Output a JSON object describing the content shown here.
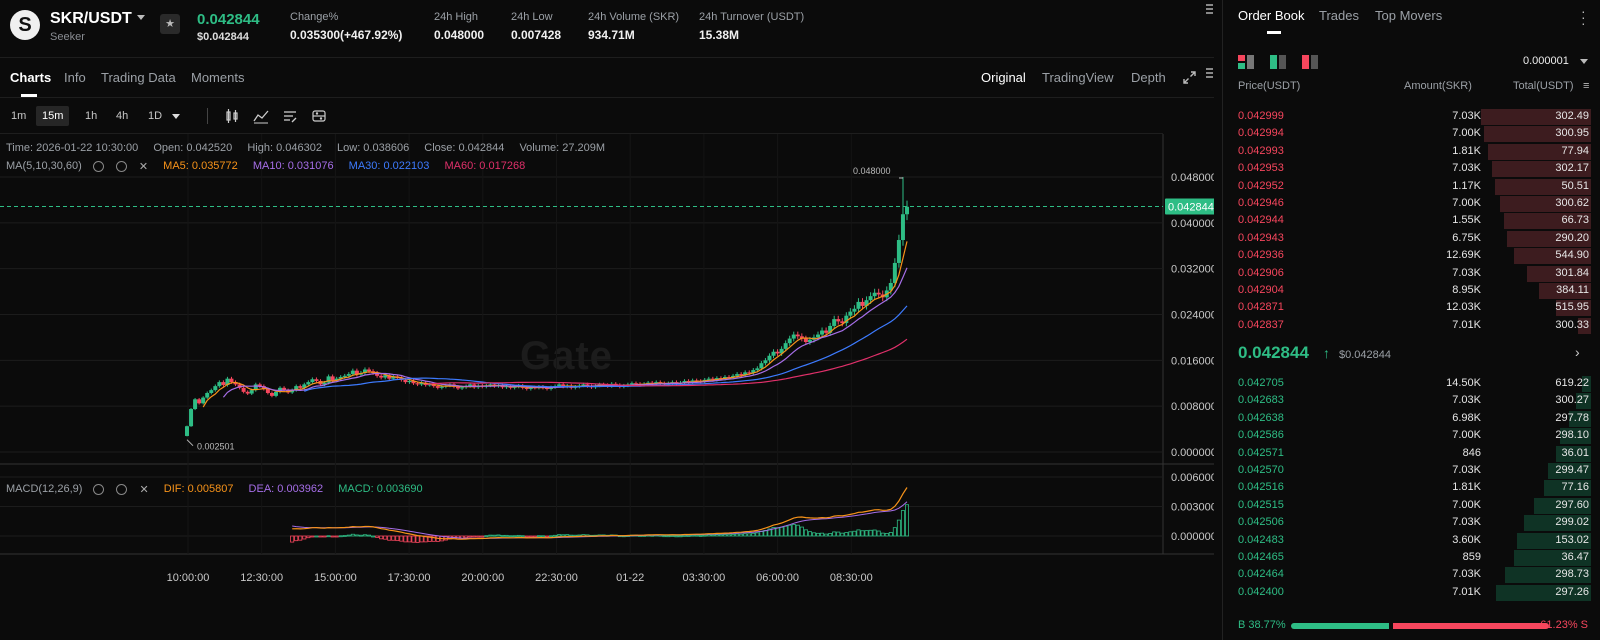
{
  "header": {
    "pair": "SKR/USDT",
    "subtitle": "Seeker",
    "price": "0.042844",
    "price_usd": "$0.042844",
    "stats": [
      {
        "label": "Change%",
        "value": "0.035300(+467.92%)",
        "color": "#2ebd85"
      },
      {
        "label": "24h High",
        "value": "0.048000"
      },
      {
        "label": "24h Low",
        "value": "0.007428"
      },
      {
        "label": "24h Volume (SKR)",
        "value": "934.71M"
      },
      {
        "label": "24h Turnover (USDT)",
        "value": "15.38M"
      }
    ]
  },
  "chart_tabs": {
    "left": [
      "Charts",
      "Info",
      "Trading Data",
      "Moments"
    ],
    "right": [
      "Original",
      "TradingView",
      "Depth"
    ],
    "active_left": "Charts",
    "active_right": "Original"
  },
  "toolbar": {
    "intervals": [
      "1m",
      "15m",
      "1h",
      "4h",
      "1D"
    ],
    "active_interval": "15m",
    "icons": [
      "candle-type-icon",
      "indicator-icon",
      "draw-icon",
      "settings-icon"
    ]
  },
  "ohlc": {
    "time": "Time: 2026-01-22 10:30:00",
    "open": "Open: 0.042520",
    "high": "High: 0.046302",
    "low": "Low: 0.038606",
    "close": "Close: 0.042844",
    "volume": "Volume: 27.209M"
  },
  "ma_legend": {
    "title": "MA(5,10,30,60)",
    "items": [
      {
        "label": "MA5: 0.035772",
        "color": "#f7931a"
      },
      {
        "label": "MA10: 0.031076",
        "color": "#a66ee8"
      },
      {
        "label": "MA30: 0.022103",
        "color": "#3d7bff"
      },
      {
        "label": "MA60: 0.017268",
        "color": "#e0306a"
      }
    ]
  },
  "macd_legend": {
    "title": "MACD(12,26,9)",
    "items": [
      {
        "label": "DIF: 0.005807",
        "color": "#f7931a"
      },
      {
        "label": "DEA: 0.003962",
        "color": "#a66ee8"
      },
      {
        "label": "MACD: 0.003690",
        "color": "#2ebd85"
      }
    ]
  },
  "watermark": "Gate",
  "chart_data": {
    "type": "candlestick",
    "price_axis": [
      "0.048000",
      "0.040000",
      "0.032000",
      "0.024000",
      "0.016000",
      "0.008000",
      "0.000000"
    ],
    "price_axis_values": [
      0.048,
      0.04,
      0.032,
      0.024,
      0.016,
      0.008,
      0.0
    ],
    "macd_axis": [
      "0.006000",
      "0.003000",
      "0.000000"
    ],
    "macd_axis_values": [
      0.006,
      0.003,
      0.0
    ],
    "time_axis": [
      "10:00:00",
      "12:30:00",
      "15:00:00",
      "17:30:00",
      "20:00:00",
      "22:30:00",
      "01-22",
      "03:30:00",
      "06:00:00",
      "08:30:00"
    ],
    "current_price_label": "0.042844",
    "current_price": 0.042844,
    "max_label": "0.048000",
    "max_value": 0.048,
    "min_label": "0.002501",
    "min_value": 0.002501,
    "closes": [
      0.0045,
      0.0075,
      0.0092,
      0.0085,
      0.0095,
      0.0103,
      0.0108,
      0.0115,
      0.0122,
      0.0117,
      0.0128,
      0.0122,
      0.0118,
      0.0112,
      0.0105,
      0.0102,
      0.0108,
      0.0118,
      0.0115,
      0.011,
      0.0103,
      0.0098,
      0.0105,
      0.0112,
      0.0108,
      0.0104,
      0.0108,
      0.0115,
      0.0112,
      0.0118,
      0.0122,
      0.0127,
      0.0124,
      0.0118,
      0.0121,
      0.0132,
      0.0125,
      0.0128,
      0.0131,
      0.0133,
      0.0136,
      0.0142,
      0.0135,
      0.0138,
      0.0144,
      0.0141,
      0.0138,
      0.0133,
      0.013,
      0.0134,
      0.0128,
      0.0132,
      0.0129,
      0.0126,
      0.0122,
      0.0124,
      0.012,
      0.0118,
      0.0121,
      0.0117,
      0.0118,
      0.0115,
      0.0112,
      0.0114,
      0.0116,
      0.0118,
      0.0114,
      0.0111,
      0.0113,
      0.0115,
      0.0118,
      0.0113,
      0.0116,
      0.0114,
      0.0116,
      0.0118,
      0.0115,
      0.0117,
      0.0113,
      0.0115,
      0.0112,
      0.0114,
      0.0116,
      0.0112,
      0.011,
      0.0113,
      0.0112,
      0.0114,
      0.0112,
      0.011,
      0.0113,
      0.0115,
      0.0118,
      0.0114,
      0.0116,
      0.0112,
      0.0114,
      0.0116,
      0.0118,
      0.0115,
      0.0113,
      0.0116,
      0.0118,
      0.0117,
      0.0115,
      0.0119,
      0.0117,
      0.0114,
      0.0116,
      0.0118,
      0.012,
      0.0119,
      0.0117,
      0.0119,
      0.0121,
      0.0119,
      0.0122,
      0.012,
      0.0118,
      0.012,
      0.0122,
      0.0119,
      0.0121,
      0.0124,
      0.0122,
      0.0125,
      0.0124,
      0.0123,
      0.0126,
      0.0128,
      0.0126,
      0.0129,
      0.0128,
      0.0131,
      0.013,
      0.0133,
      0.0136,
      0.0134,
      0.0139,
      0.0138,
      0.0143,
      0.0146,
      0.0155,
      0.016,
      0.0168,
      0.0175,
      0.0172,
      0.018,
      0.019,
      0.0198,
      0.0205,
      0.0202,
      0.0198,
      0.0192,
      0.0196,
      0.02,
      0.0205,
      0.0212,
      0.0208,
      0.022,
      0.0232,
      0.0228,
      0.0225,
      0.0238,
      0.0245,
      0.025,
      0.0262,
      0.0255,
      0.0265,
      0.0272,
      0.0278,
      0.0275,
      0.027,
      0.0282,
      0.0295,
      0.033,
      0.037,
      0.0415,
      0.0428
    ],
    "series": [
      {
        "name": "MA5"
      },
      {
        "name": "MA10"
      },
      {
        "name": "MA30"
      },
      {
        "name": "MA60"
      },
      {
        "name": "DIF"
      },
      {
        "name": "DEA"
      },
      {
        "name": "MACD"
      }
    ]
  },
  "orderbook": {
    "tabs": [
      "Order Book",
      "Trades",
      "Top Movers"
    ],
    "active_tab": "Order Book",
    "precision": "0.000001",
    "headers": {
      "price": "Price(USDT)",
      "amount": "Amount(SKR)",
      "total": "Total(USDT)"
    },
    "asks": [
      {
        "price": "0.042999",
        "amount": "7.03K",
        "total": "302.49",
        "depth": 1.0
      },
      {
        "price": "0.042994",
        "amount": "7.00K",
        "total": "300.95",
        "depth": 0.97
      },
      {
        "price": "0.042993",
        "amount": "1.81K",
        "total": "77.94",
        "depth": 0.94
      },
      {
        "price": "0.042953",
        "amount": "7.03K",
        "total": "302.17",
        "depth": 0.9
      },
      {
        "price": "0.042952",
        "amount": "1.17K",
        "total": "50.51",
        "depth": 0.87
      },
      {
        "price": "0.042946",
        "amount": "7.00K",
        "total": "300.62",
        "depth": 0.83
      },
      {
        "price": "0.042944",
        "amount": "1.55K",
        "total": "66.73",
        "depth": 0.79
      },
      {
        "price": "0.042943",
        "amount": "6.75K",
        "total": "290.20",
        "depth": 0.76
      },
      {
        "price": "0.042936",
        "amount": "12.69K",
        "total": "544.90",
        "depth": 0.7
      },
      {
        "price": "0.042906",
        "amount": "7.03K",
        "total": "301.84",
        "depth": 0.58
      },
      {
        "price": "0.042904",
        "amount": "8.95K",
        "total": "384.11",
        "depth": 0.47
      },
      {
        "price": "0.042871",
        "amount": "12.03K",
        "total": "515.95",
        "depth": 0.32
      },
      {
        "price": "0.042837",
        "amount": "7.01K",
        "total": "300.33",
        "depth": 0.12
      }
    ],
    "mid": {
      "price": "0.042844",
      "usd": "$0.042844"
    },
    "bids": [
      {
        "price": "0.042705",
        "amount": "14.50K",
        "total": "619.22",
        "depth": 0.08
      },
      {
        "price": "0.042683",
        "amount": "7.03K",
        "total": "300.27",
        "depth": 0.14
      },
      {
        "price": "0.042638",
        "amount": "6.98K",
        "total": "297.78",
        "depth": 0.2
      },
      {
        "price": "0.042586",
        "amount": "7.00K",
        "total": "298.10",
        "depth": 0.28
      },
      {
        "price": "0.042571",
        "amount": "846",
        "total": "36.01",
        "depth": 0.32
      },
      {
        "price": "0.042570",
        "amount": "7.03K",
        "total": "299.47",
        "depth": 0.39
      },
      {
        "price": "0.042516",
        "amount": "1.81K",
        "total": "77.16",
        "depth": 0.43
      },
      {
        "price": "0.042515",
        "amount": "7.00K",
        "total": "297.60",
        "depth": 0.52
      },
      {
        "price": "0.042506",
        "amount": "7.03K",
        "total": "299.02",
        "depth": 0.61
      },
      {
        "price": "0.042483",
        "amount": "3.60K",
        "total": "153.02",
        "depth": 0.67
      },
      {
        "price": "0.042465",
        "amount": "859",
        "total": "36.47",
        "depth": 0.7
      },
      {
        "price": "0.042464",
        "amount": "7.03K",
        "total": "298.73",
        "depth": 0.78
      },
      {
        "price": "0.042400",
        "amount": "7.01K",
        "total": "297.26",
        "depth": 0.86
      }
    ],
    "buy_ratio": "B 38.77%",
    "sell_ratio": "61.23% S",
    "buy_fraction": 0.3877,
    "colors": {
      "buy": "#2ebd85",
      "sell": "#f6465d"
    }
  }
}
